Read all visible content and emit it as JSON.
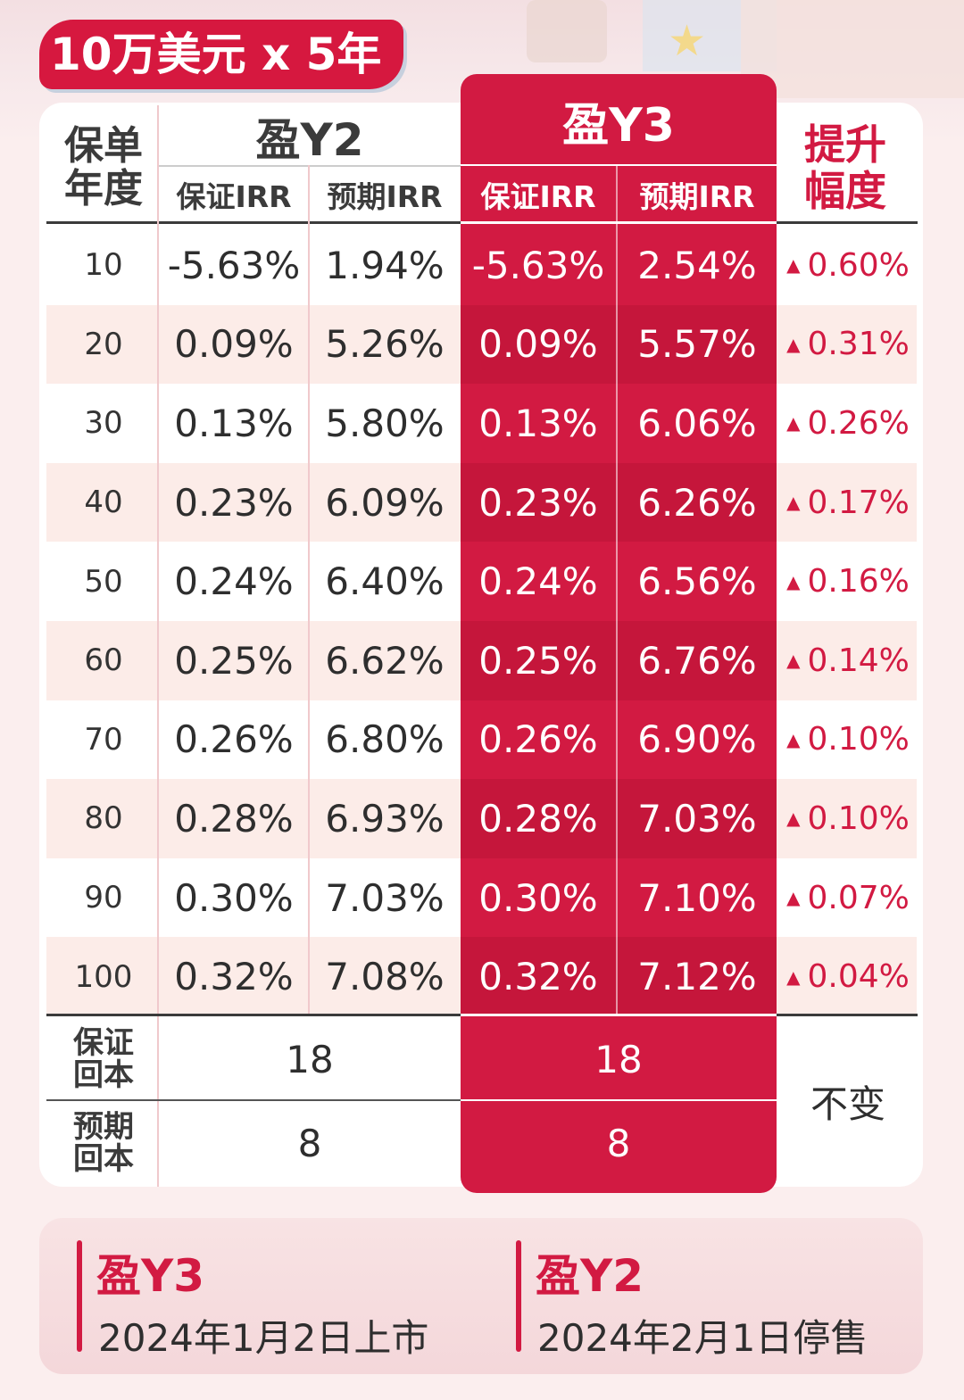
{
  "badge": "10万美元 x 5年",
  "header": {
    "year_col": "保单\n年度",
    "y2_name": "盈Y2",
    "y3_name": "盈Y3",
    "guaranteed_irr": "保证IRR",
    "expected_irr": "预期IRR",
    "increase": "提升\n幅度"
  },
  "rows": [
    {
      "year": "10",
      "y2_g": "-5.63%",
      "y2_e": "1.94%",
      "y3_g": "-5.63%",
      "y3_e": "2.54%",
      "inc": "0.60%"
    },
    {
      "year": "20",
      "y2_g": "0.09%",
      "y2_e": "5.26%",
      "y3_g": "0.09%",
      "y3_e": "5.57%",
      "inc": "0.31%"
    },
    {
      "year": "30",
      "y2_g": "0.13%",
      "y2_e": "5.80%",
      "y3_g": "0.13%",
      "y3_e": "6.06%",
      "inc": "0.26%"
    },
    {
      "year": "40",
      "y2_g": "0.23%",
      "y2_e": "6.09%",
      "y3_g": "0.23%",
      "y3_e": "6.26%",
      "inc": "0.17%"
    },
    {
      "year": "50",
      "y2_g": "0.24%",
      "y2_e": "6.40%",
      "y3_g": "0.24%",
      "y3_e": "6.56%",
      "inc": "0.16%"
    },
    {
      "year": "60",
      "y2_g": "0.25%",
      "y2_e": "6.62%",
      "y3_g": "0.25%",
      "y3_e": "6.76%",
      "inc": "0.14%"
    },
    {
      "year": "70",
      "y2_g": "0.26%",
      "y2_e": "6.80%",
      "y3_g": "0.26%",
      "y3_e": "6.90%",
      "inc": "0.10%"
    },
    {
      "year": "80",
      "y2_g": "0.28%",
      "y2_e": "6.93%",
      "y3_g": "0.28%",
      "y3_e": "7.03%",
      "inc": "0.10%"
    },
    {
      "year": "90",
      "y2_g": "0.30%",
      "y2_e": "7.03%",
      "y3_g": "0.30%",
      "y3_e": "7.10%",
      "inc": "0.07%"
    },
    {
      "year": "100",
      "y2_g": "0.32%",
      "y2_e": "7.08%",
      "y3_g": "0.32%",
      "y3_e": "7.12%",
      "inc": "0.04%"
    }
  ],
  "breakeven": {
    "guaranteed_label": "保证\n回本",
    "expected_label": "预期\n回本",
    "y2_guaranteed": "18",
    "y3_guaranteed": "18",
    "y2_expected": "8",
    "y3_expected": "8",
    "change": "不变"
  },
  "footer": {
    "left_title": "盈Y3",
    "left_sub": "2024年1月2日上市",
    "right_title": "盈Y2",
    "right_sub": "2024年2月1日停售"
  },
  "colors": {
    "accent": "#d21a42",
    "background": "#fbeeee"
  },
  "icons": {
    "increase": "triangle-up-icon"
  }
}
